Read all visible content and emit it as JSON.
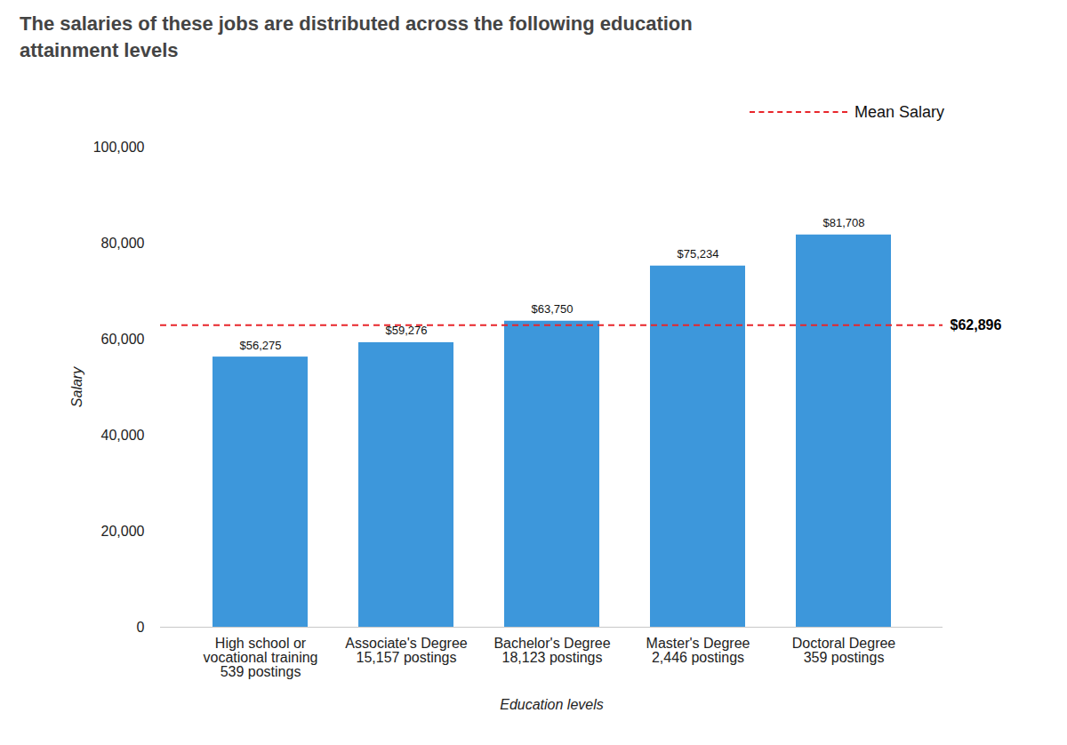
{
  "chart_data": {
    "type": "bar",
    "title": "The salaries of these jobs are distributed across the following education attainment levels",
    "categories": [
      "High school or vocational training",
      "Associate's Degree",
      "Bachelor's Degree",
      "Master's Degree",
      "Doctoral Degree"
    ],
    "postings": [
      "539 postings",
      "15,157 postings",
      "18,123 postings",
      "2,446 postings",
      "359 postings"
    ],
    "values": [
      56275,
      59276,
      63750,
      75234,
      81708
    ],
    "value_labels": [
      "$56,275",
      "$59,276",
      "$63,750",
      "$75,234",
      "$81,708"
    ],
    "data_labels": true,
    "color": "#3d97db",
    "x_label": "Education levels",
    "y_label": "Salary",
    "ylim": [
      0,
      100000
    ],
    "yticks": [
      0,
      {
        "value": 20000,
        "label": "20,000"
      },
      {
        "value": 40000,
        "label": "40,000"
      },
      {
        "value": 60000,
        "label": "60,000"
      },
      {
        "value": 80000,
        "label": "80,000"
      },
      {
        "value": 100000,
        "label": "100,000"
      }
    ],
    "grid": false,
    "legend": "top-right",
    "mean": {
      "name": "Mean Salary",
      "value": 62896,
      "label": "$62,896",
      "color": "#e8262b",
      "line_style": "dashed"
    }
  }
}
